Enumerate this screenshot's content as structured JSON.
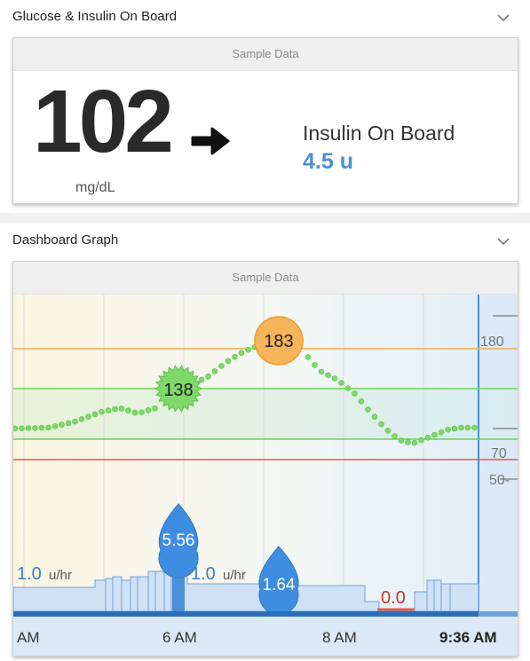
{
  "glucose_section": {
    "title": "Glucose & Insulin On Board",
    "banner": "Sample Data",
    "glucose_value": "102",
    "glucose_unit": "mg/dL",
    "trend": "arrow-right-icon",
    "iob_label": "Insulin On Board",
    "iob_value": "4.5 u"
  },
  "graph_section": {
    "title": "Dashboard Graph",
    "banner": "Sample Data",
    "y_labels": [
      "180",
      "70",
      "50-"
    ],
    "x_labels": [
      "AM",
      "6 AM",
      "8 AM",
      "9:36 AM"
    ],
    "bubbles": {
      "glucose_high": "183",
      "glucose_mid": "138"
    },
    "boluses": [
      {
        "value": "5.56"
      },
      {
        "value": "1.64"
      }
    ],
    "basal_labels": [
      {
        "rate": "1.0",
        "unit": "u/hr"
      },
      {
        "rate": "1.0",
        "unit": "u/hr"
      },
      {
        "rate": "0.0",
        "unit": ""
      }
    ]
  },
  "colors": {
    "accent_blue": "#4a90d9",
    "glucose_green": "#6bd35a",
    "high_orange": "#f4a84a",
    "low_red": "#e05a4a"
  }
}
